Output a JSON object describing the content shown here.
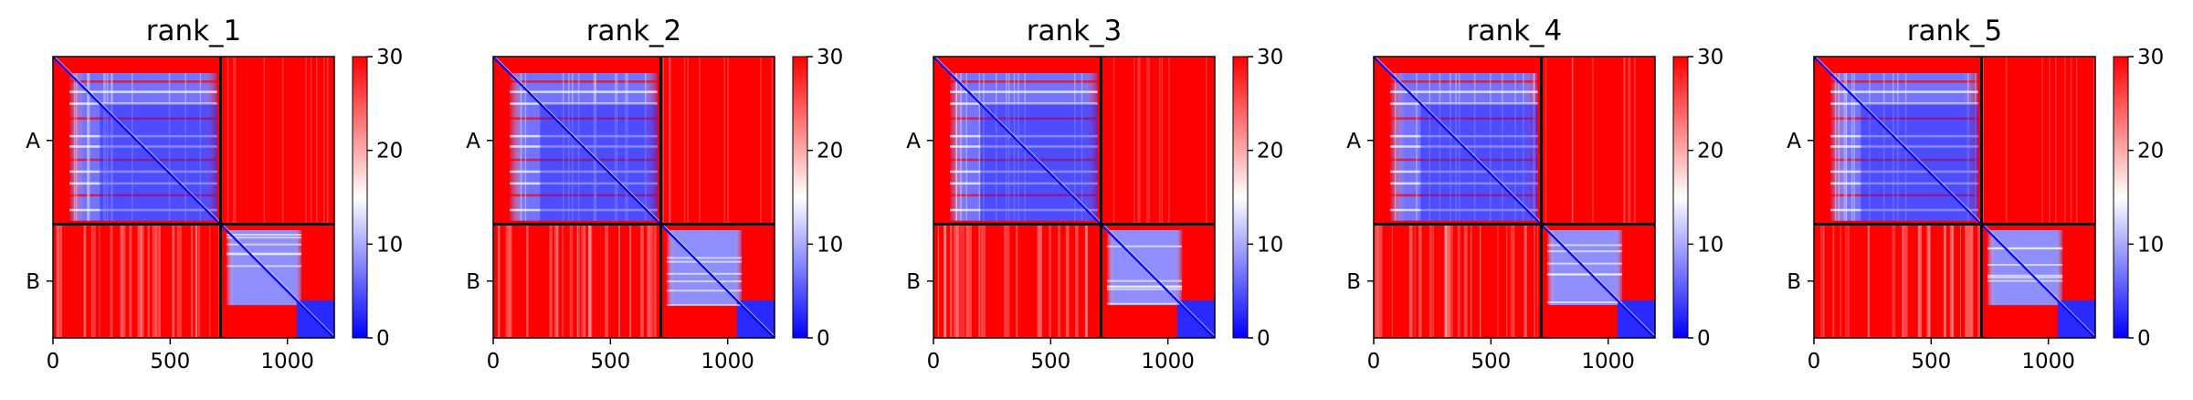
{
  "figure": "Predicted aligned error (PAE) heatmaps, 5 ranks",
  "colormap": {
    "low": "#0000ff",
    "mid": "#ffffff",
    "high": "#ff0000"
  },
  "chart_data": [
    {
      "type": "heatmap",
      "title": "rank_1",
      "x_ticks": [
        "0",
        "500",
        "1000"
      ],
      "x_tick_values": [
        0,
        500,
        1000
      ],
      "y_ticks": [
        "A",
        "B"
      ],
      "xlim": [
        0,
        1200
      ],
      "chain_boundary": 715,
      "colorbar": {
        "ticks": [
          "0",
          "10",
          "20",
          "30"
        ],
        "tick_values": [
          0,
          10,
          20,
          30
        ],
        "range": [
          0,
          30
        ]
      }
    },
    {
      "type": "heatmap",
      "title": "rank_2",
      "x_ticks": [
        "0",
        "500",
        "1000"
      ],
      "x_tick_values": [
        0,
        500,
        1000
      ],
      "y_ticks": [
        "A",
        "B"
      ],
      "xlim": [
        0,
        1200
      ],
      "chain_boundary": 715,
      "colorbar": {
        "ticks": [
          "0",
          "10",
          "20",
          "30"
        ],
        "tick_values": [
          0,
          10,
          20,
          30
        ],
        "range": [
          0,
          30
        ]
      }
    },
    {
      "type": "heatmap",
      "title": "rank_3",
      "x_ticks": [
        "0",
        "500",
        "1000"
      ],
      "x_tick_values": [
        0,
        500,
        1000
      ],
      "y_ticks": [
        "A",
        "B"
      ],
      "xlim": [
        0,
        1200
      ],
      "chain_boundary": 715,
      "colorbar": {
        "ticks": [
          "0",
          "10",
          "20",
          "30"
        ],
        "tick_values": [
          0,
          10,
          20,
          30
        ],
        "range": [
          0,
          30
        ]
      }
    },
    {
      "type": "heatmap",
      "title": "rank_4",
      "x_ticks": [
        "0",
        "500",
        "1000"
      ],
      "x_tick_values": [
        0,
        500,
        1000
      ],
      "y_ticks": [
        "A",
        "B"
      ],
      "xlim": [
        0,
        1200
      ],
      "chain_boundary": 715,
      "colorbar": {
        "ticks": [
          "0",
          "10",
          "20",
          "30"
        ],
        "tick_values": [
          0,
          10,
          20,
          30
        ],
        "range": [
          0,
          30
        ]
      }
    },
    {
      "type": "heatmap",
      "title": "rank_5",
      "x_ticks": [
        "0",
        "500",
        "1000"
      ],
      "x_tick_values": [
        0,
        500,
        1000
      ],
      "y_ticks": [
        "A",
        "B"
      ],
      "xlim": [
        0,
        1200
      ],
      "chain_boundary": 715,
      "colorbar": {
        "ticks": [
          "0",
          "10",
          "20",
          "30"
        ],
        "tick_values": [
          0,
          10,
          20,
          30
        ],
        "range": [
          0,
          30
        ]
      }
    }
  ]
}
